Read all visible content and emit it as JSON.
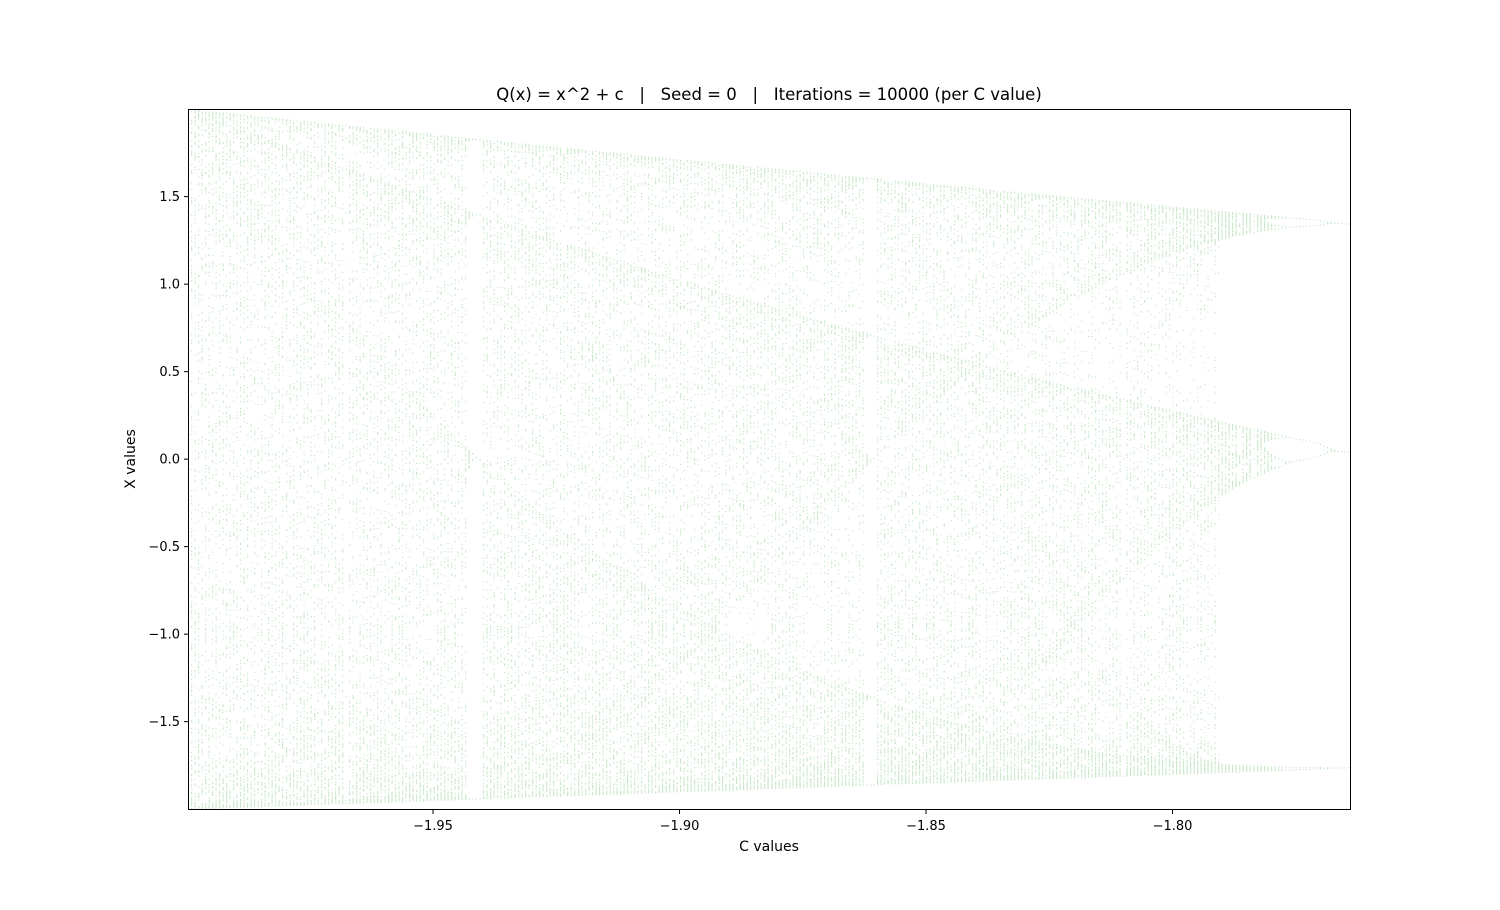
{
  "chart_data": {
    "type": "scatter",
    "title": "Q(x) = x^2 + c   |   Seed = 0   |   Iterations = 10000 (per C value)",
    "xlabel": "C values",
    "ylabel": "X values",
    "xlim": [
      -1.9995,
      -1.764
    ],
    "ylim": [
      -1.999,
      1.995
    ],
    "xticks": [
      -1.95,
      -1.9,
      -1.85,
      -1.8
    ],
    "xtick_labels": [
      "−1.95",
      "−1.90",
      "−1.85",
      "−1.80"
    ],
    "yticks": [
      -1.5,
      -1.0,
      -0.5,
      0.0,
      0.5,
      1.0,
      1.5
    ],
    "ytick_labels": [
      "−1.5",
      "−1.0",
      "−0.5",
      "0.0",
      "0.5",
      "1.0",
      "1.5"
    ],
    "grid": false,
    "legend": "none",
    "marker_color": "#2ca02c",
    "marker_opacity": 0.25,
    "description_of_series": "orbit of x_{n+1} = x_n^2 + c from x_0 = 0, plotted for each c",
    "map": {
      "seed": 0,
      "iterations_per_c": 10000
    }
  }
}
